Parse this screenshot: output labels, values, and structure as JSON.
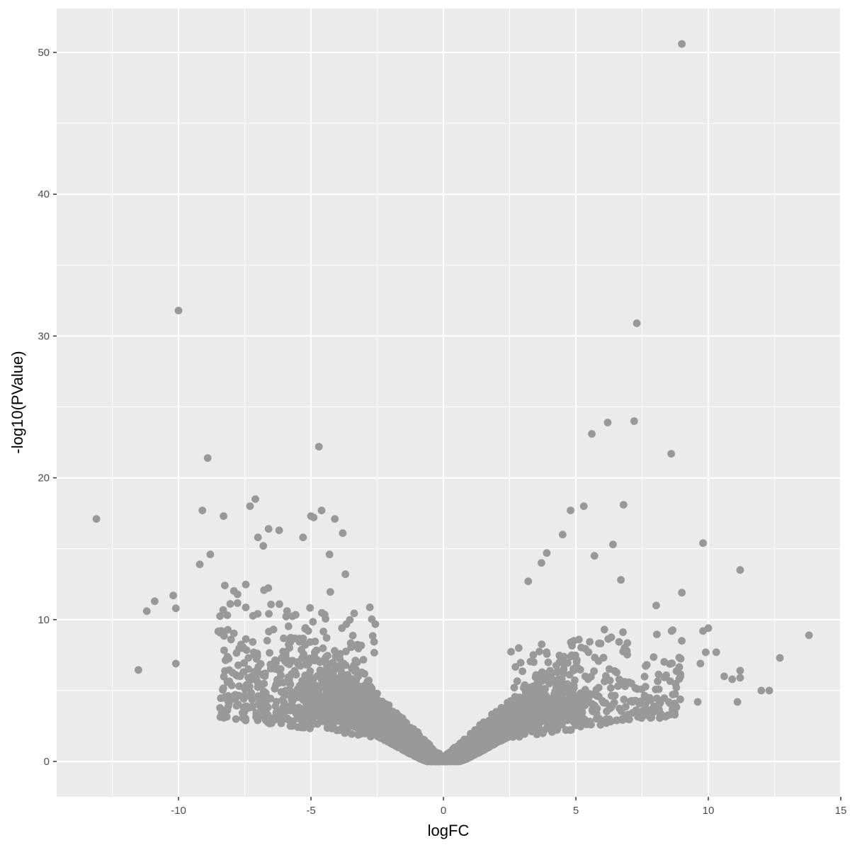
{
  "chart_data": {
    "type": "scatter",
    "title": "",
    "xlabel": "logFC",
    "ylabel": "-log10(PValue)",
    "xlim": [
      -14.6,
      15.0
    ],
    "ylim": [
      -2.5,
      53.1
    ],
    "x_ticks": [
      -10,
      -5,
      0,
      5,
      10,
      15
    ],
    "x_tick_labels": [
      "-10",
      "-5",
      "0",
      "5",
      "10",
      "15"
    ],
    "y_ticks": [
      0,
      10,
      20,
      30,
      40,
      50
    ],
    "y_tick_labels": [
      "0",
      "10",
      "20",
      "30",
      "40",
      "50"
    ],
    "grid": true,
    "legend": "none",
    "point_color": "#999999",
    "panel_background": "#ebebeb",
    "grid_color": "#ffffff",
    "description": "Volcano plot: thousands of genes forming a V-shaped cloud centred at logFC=0, -log10(PValue)=0; most points below 10.",
    "outliers": [
      {
        "x": 9.0,
        "y": 50.6
      },
      {
        "x": -10.0,
        "y": 31.8
      },
      {
        "x": 7.3,
        "y": 30.9
      },
      {
        "x": 7.2,
        "y": 24.0
      },
      {
        "x": 6.2,
        "y": 23.9
      },
      {
        "x": 5.6,
        "y": 23.1
      },
      {
        "x": -4.7,
        "y": 22.2
      },
      {
        "x": 8.6,
        "y": 21.7
      },
      {
        "x": -8.9,
        "y": 21.4
      },
      {
        "x": -7.1,
        "y": 18.5
      },
      {
        "x": -7.3,
        "y": 18.0
      },
      {
        "x": 6.8,
        "y": 18.1
      },
      {
        "x": 5.3,
        "y": 18.0
      },
      {
        "x": 4.8,
        "y": 17.7
      },
      {
        "x": -9.1,
        "y": 17.7
      },
      {
        "x": -4.6,
        "y": 17.7
      },
      {
        "x": -8.3,
        "y": 17.3
      },
      {
        "x": -5.0,
        "y": 17.3
      },
      {
        "x": -4.9,
        "y": 17.2
      },
      {
        "x": -4.1,
        "y": 17.1
      },
      {
        "x": -13.1,
        "y": 17.1
      },
      {
        "x": -6.6,
        "y": 16.4
      },
      {
        "x": -6.2,
        "y": 16.3
      },
      {
        "x": -3.8,
        "y": 16.1
      },
      {
        "x": 4.5,
        "y": 16.0
      },
      {
        "x": -7.0,
        "y": 15.8
      },
      {
        "x": -5.3,
        "y": 15.8
      },
      {
        "x": 9.8,
        "y": 15.4
      },
      {
        "x": 6.4,
        "y": 15.3
      },
      {
        "x": -6.8,
        "y": 15.2
      },
      {
        "x": 3.9,
        "y": 14.7
      },
      {
        "x": -4.3,
        "y": 14.6
      },
      {
        "x": 5.7,
        "y": 14.5
      },
      {
        "x": -8.8,
        "y": 14.6
      },
      {
        "x": -9.2,
        "y": 13.9
      },
      {
        "x": 3.7,
        "y": 14.0
      },
      {
        "x": 11.2,
        "y": 13.5
      },
      {
        "x": -3.7,
        "y": 13.2
      },
      {
        "x": 6.7,
        "y": 12.8
      },
      {
        "x": 3.2,
        "y": 12.7
      },
      {
        "x": -10.2,
        "y": 11.7
      },
      {
        "x": -10.9,
        "y": 11.3
      },
      {
        "x": 9.0,
        "y": 11.9
      },
      {
        "x": -11.2,
        "y": 10.6
      },
      {
        "x": -10.1,
        "y": 10.8
      },
      {
        "x": -10.1,
        "y": 6.9
      },
      {
        "x": 13.8,
        "y": 8.9
      },
      {
        "x": 12.7,
        "y": 7.3
      },
      {
        "x": 12.3,
        "y": 5.0
      },
      {
        "x": 12.0,
        "y": 5.0
      },
      {
        "x": 11.2,
        "y": 6.4
      },
      {
        "x": 11.2,
        "y": 5.9
      },
      {
        "x": 11.1,
        "y": 4.2
      },
      {
        "x": 10.9,
        "y": 5.8
      },
      {
        "x": 10.6,
        "y": 6.0
      },
      {
        "x": 10.3,
        "y": 7.7
      },
      {
        "x": 9.9,
        "y": 7.7
      },
      {
        "x": 10.0,
        "y": 9.4
      },
      {
        "x": 9.8,
        "y": 9.2
      },
      {
        "x": 9.7,
        "y": 6.9
      },
      {
        "x": 9.6,
        "y": 4.2
      }
    ]
  }
}
